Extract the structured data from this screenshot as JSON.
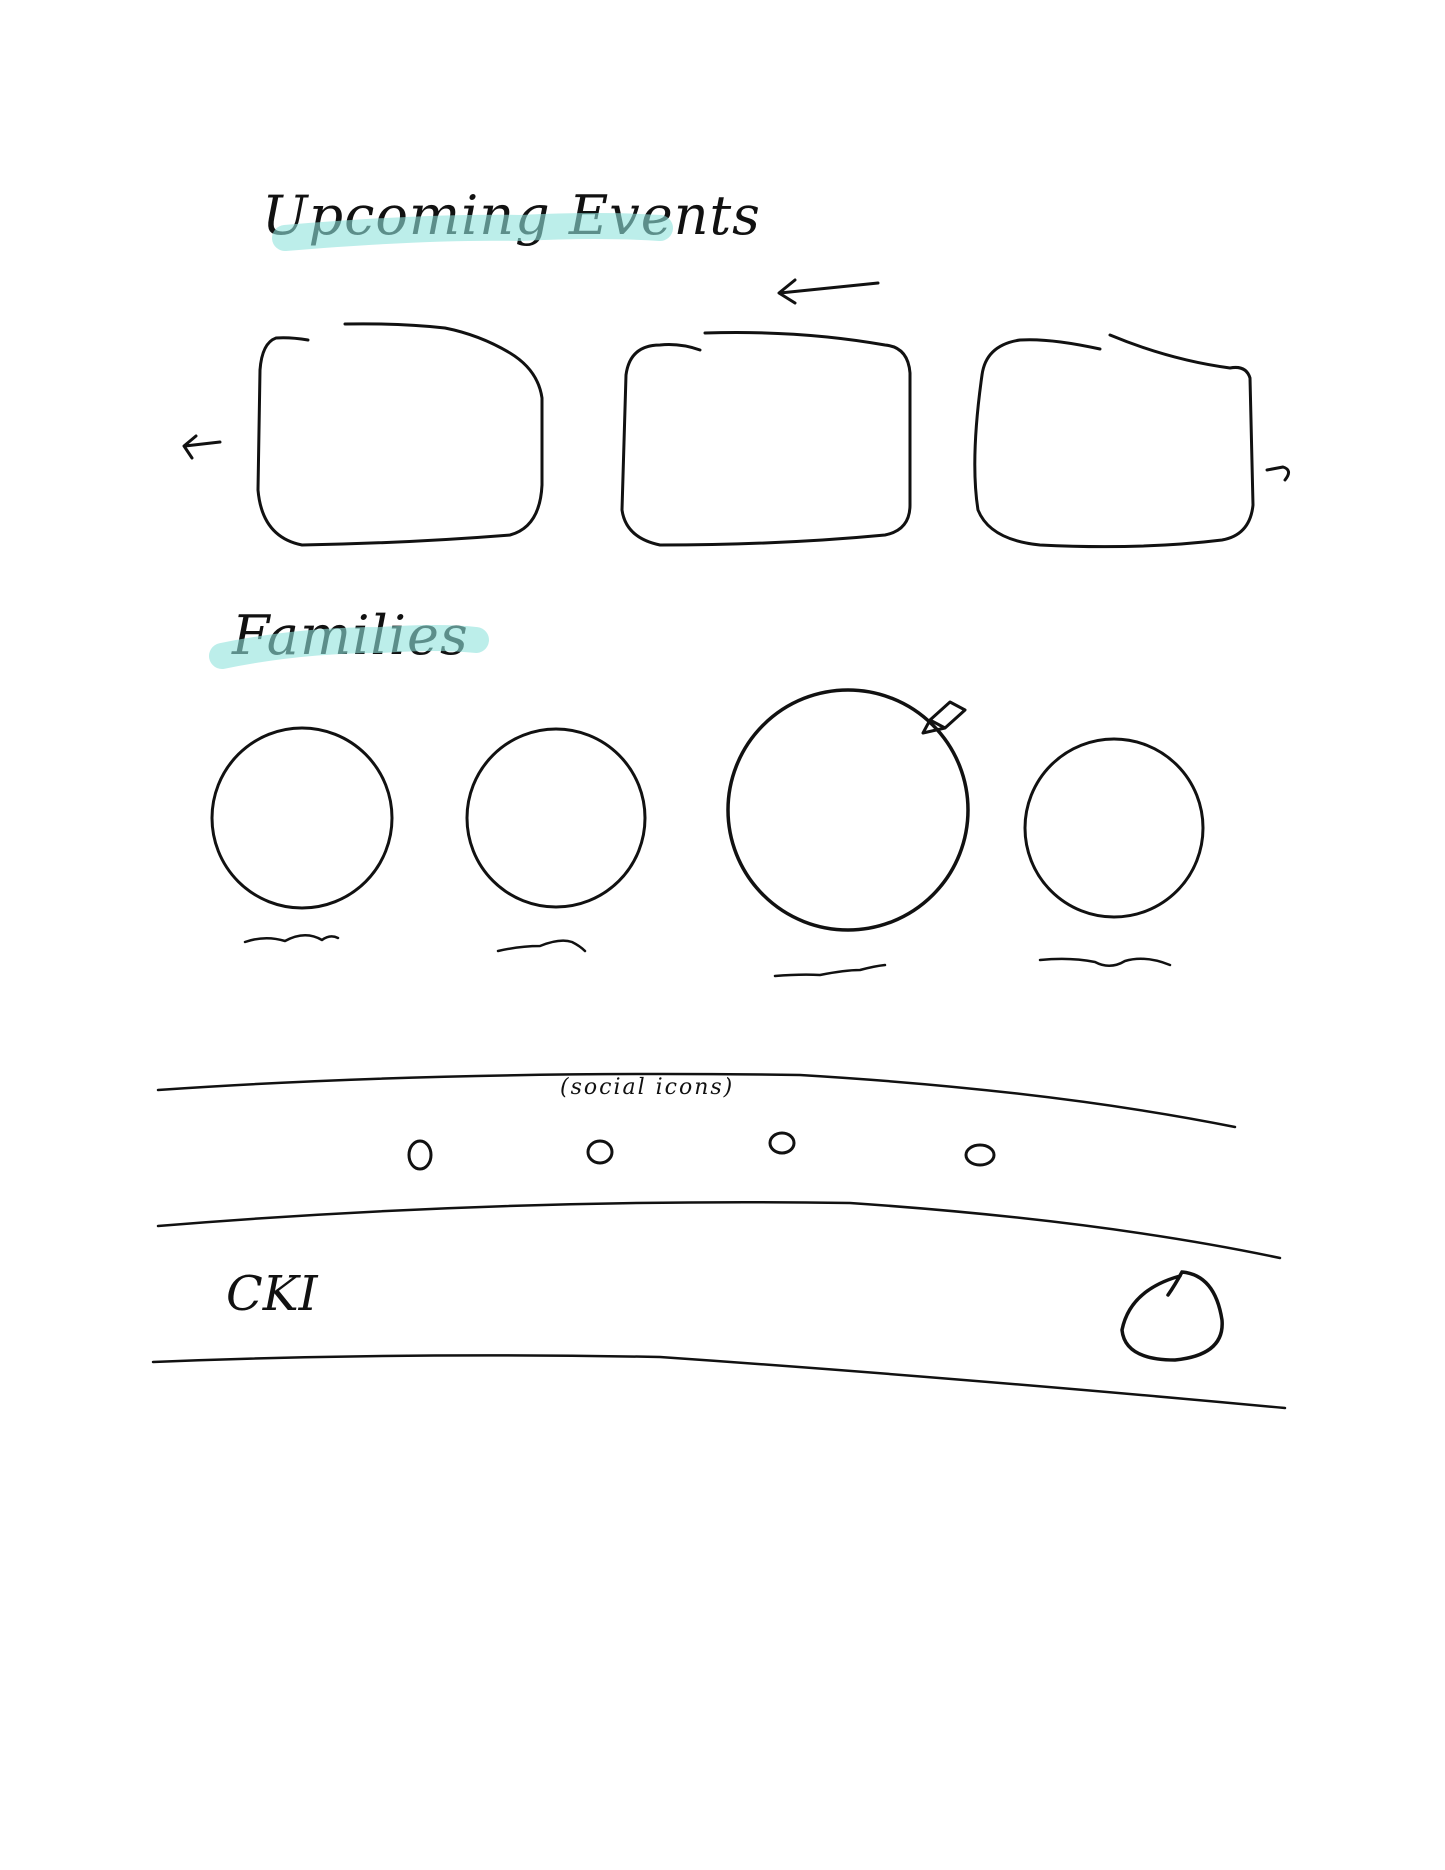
{
  "colors": {
    "ink": "#111111",
    "highlight": "#8fe3dc"
  },
  "sections": {
    "events": {
      "title": "Upcoming Events"
    },
    "families": {
      "title": "Families"
    },
    "social": {
      "label": "(social icons)"
    },
    "footer": {
      "logo_text": "CKI"
    }
  },
  "icons": {
    "arrow_top": "arrow-left-icon",
    "arrow_left": "arrow-left-icon",
    "arrow_right": "arrow-right-icon",
    "edit": "pencil-icon",
    "social": "circle-icon",
    "footer_button": "circle-icon"
  }
}
